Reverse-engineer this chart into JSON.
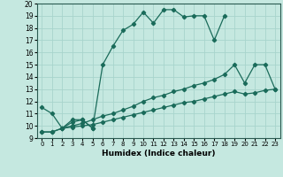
{
  "xlabel": "Humidex (Indice chaleur)",
  "bg_color": "#c5e8e0",
  "line_color": "#1a6b5a",
  "grid_color": "#a8d4cc",
  "xlim": [
    -0.5,
    23.5
  ],
  "ylim": [
    9,
    20
  ],
  "xticks": [
    0,
    1,
    2,
    3,
    4,
    5,
    6,
    7,
    8,
    9,
    10,
    11,
    12,
    13,
    14,
    15,
    16,
    17,
    18,
    19,
    20,
    21,
    22,
    23
  ],
  "yticks": [
    9,
    10,
    11,
    12,
    13,
    14,
    15,
    16,
    17,
    18,
    19,
    20
  ],
  "line1_x": [
    0,
    1,
    2,
    3,
    4,
    5
  ],
  "line1_y": [
    11.5,
    11.0,
    9.8,
    10.3,
    10.5,
    9.8
  ],
  "line2_x": [
    2,
    3,
    4,
    5,
    6,
    7,
    8,
    9,
    10,
    11,
    12,
    13,
    14,
    15,
    16,
    17,
    18
  ],
  "line2_y": [
    9.8,
    10.5,
    10.5,
    9.8,
    15.0,
    16.5,
    17.8,
    18.3,
    19.3,
    18.4,
    19.5,
    19.5,
    18.9,
    19.0,
    19.0,
    17.0,
    19.0
  ],
  "line3_x": [
    0,
    1,
    2,
    3,
    4,
    5,
    6,
    7,
    8,
    9,
    10,
    11,
    12,
    13,
    14,
    15,
    16,
    17,
    18,
    19,
    20,
    21,
    22,
    23
  ],
  "line3_y": [
    9.5,
    9.5,
    9.8,
    10.0,
    10.2,
    10.5,
    10.8,
    11.0,
    11.3,
    11.6,
    12.0,
    12.3,
    12.5,
    12.8,
    13.0,
    13.3,
    13.5,
    13.8,
    14.2,
    15.0,
    13.5,
    15.0,
    15.0,
    13.0
  ],
  "line4_x": [
    0,
    1,
    2,
    3,
    4,
    5,
    6,
    7,
    8,
    9,
    10,
    11,
    12,
    13,
    14,
    15,
    16,
    17,
    18,
    19,
    20,
    21,
    22,
    23
  ],
  "line4_y": [
    9.5,
    9.5,
    9.8,
    9.9,
    10.0,
    10.1,
    10.3,
    10.5,
    10.7,
    10.9,
    11.1,
    11.3,
    11.5,
    11.7,
    11.9,
    12.0,
    12.2,
    12.4,
    12.6,
    12.8,
    12.6,
    12.7,
    12.9,
    13.0
  ]
}
